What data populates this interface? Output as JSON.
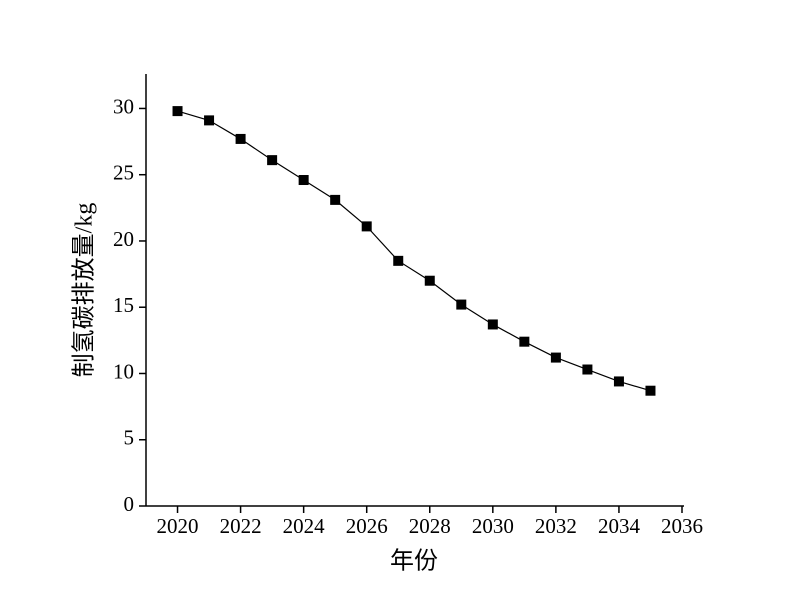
{
  "chart_data": {
    "type": "line",
    "x_label": "年份",
    "y_label": "制氢碳排放量/kg",
    "x": [
      2020,
      2021,
      2022,
      2023,
      2024,
      2025,
      2026,
      2027,
      2028,
      2029,
      2030,
      2031,
      2032,
      2033,
      2034,
      2035
    ],
    "series": [
      {
        "color": "#000000",
        "marker": "square",
        "values": [
          29.8,
          29.1,
          27.7,
          26.1,
          24.6,
          23.1,
          21.1,
          18.5,
          17.0,
          15.2,
          13.7,
          12.4,
          11.2,
          10.3,
          9.4,
          8.7
        ]
      }
    ],
    "xlim": [
      2019,
      2036
    ],
    "xticks": [
      2020,
      2022,
      2024,
      2026,
      2028,
      2030,
      2032,
      2034,
      2036
    ],
    "ylim": [
      0,
      32.6
    ],
    "yticks": [
      0,
      5,
      10,
      15,
      20,
      25,
      30
    ],
    "grid": false
  }
}
